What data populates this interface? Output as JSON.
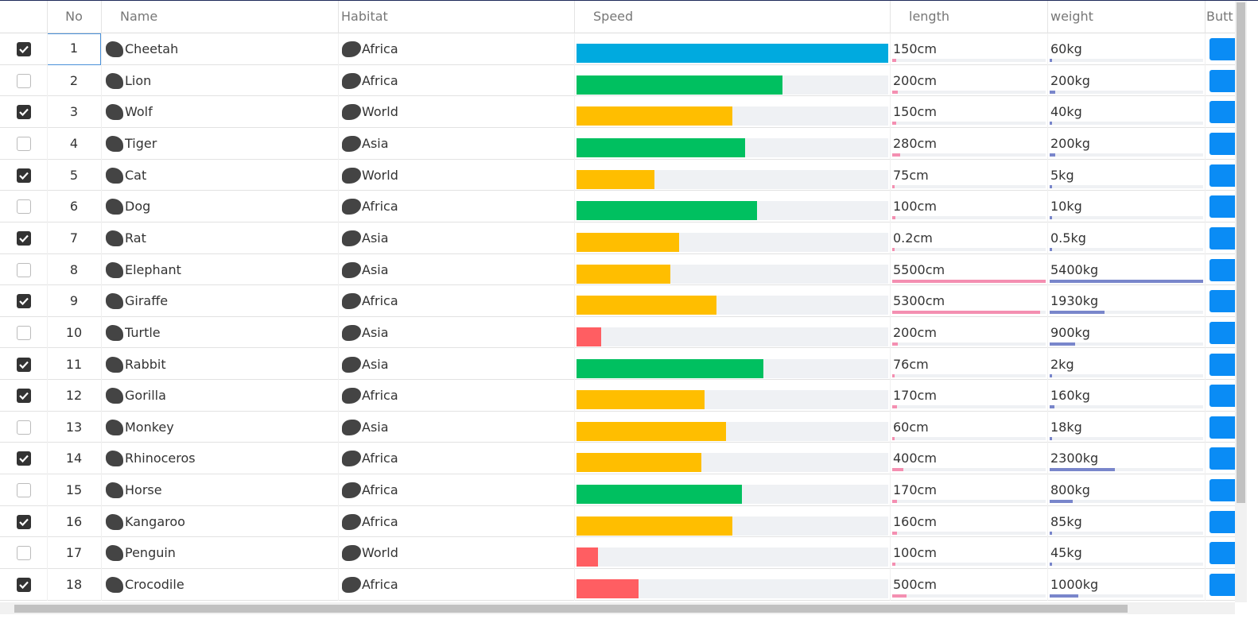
{
  "header": {
    "columns": [
      "No",
      "Name",
      "Habitat",
      "Speed",
      "length",
      "weight",
      "Butt"
    ]
  },
  "rows": [
    {
      "checked": true,
      "no": 1,
      "name": "Cheetah",
      "habitat": "Africa",
      "speed": 100,
      "speed_color": "#00aadf",
      "length": {
        "value": 150,
        "label": "150cm"
      },
      "weight": {
        "value": 60,
        "label": "60kg"
      }
    },
    {
      "checked": false,
      "no": 2,
      "name": "Lion",
      "habitat": "Africa",
      "speed": 66,
      "speed_color": "#00c060",
      "length": {
        "value": 200,
        "label": "200cm"
      },
      "weight": {
        "value": 200,
        "label": "200kg"
      }
    },
    {
      "checked": true,
      "no": 3,
      "name": "Wolf",
      "habitat": "World",
      "speed": 50,
      "speed_color": "#ffbe00",
      "length": {
        "value": 150,
        "label": "150cm"
      },
      "weight": {
        "value": 40,
        "label": "40kg"
      }
    },
    {
      "checked": false,
      "no": 4,
      "name": "Tiger",
      "habitat": "Asia",
      "speed": 54,
      "speed_color": "#00c060",
      "length": {
        "value": 280,
        "label": "280cm"
      },
      "weight": {
        "value": 200,
        "label": "200kg"
      }
    },
    {
      "checked": true,
      "no": 5,
      "name": "Cat",
      "habitat": "World",
      "speed": 25,
      "speed_color": "#ffbe00",
      "length": {
        "value": 75,
        "label": "75cm"
      },
      "weight": {
        "value": 5,
        "label": "5kg"
      }
    },
    {
      "checked": false,
      "no": 6,
      "name": "Dog",
      "habitat": "Africa",
      "speed": 58,
      "speed_color": "#00c060",
      "length": {
        "value": 100,
        "label": "100cm"
      },
      "weight": {
        "value": 10,
        "label": "10kg"
      }
    },
    {
      "checked": true,
      "no": 7,
      "name": "Rat",
      "habitat": "Asia",
      "speed": 33,
      "speed_color": "#ffbe00",
      "length": {
        "value": 0.2,
        "label": "0.2cm"
      },
      "weight": {
        "value": 0.5,
        "label": "0.5kg"
      }
    },
    {
      "checked": false,
      "no": 8,
      "name": "Elephant",
      "habitat": "Asia",
      "speed": 30,
      "speed_color": "#ffbe00",
      "length": {
        "value": 5500,
        "label": "5500cm"
      },
      "weight": {
        "value": 5400,
        "label": "5400kg"
      }
    },
    {
      "checked": true,
      "no": 9,
      "name": "Giraffe",
      "habitat": "Africa",
      "speed": 45,
      "speed_color": "#ffbe00",
      "length": {
        "value": 5300,
        "label": "5300cm"
      },
      "weight": {
        "value": 1930,
        "label": "1930kg"
      }
    },
    {
      "checked": false,
      "no": 10,
      "name": "Turtle",
      "habitat": "Asia",
      "speed": 8,
      "speed_color": "#ff5e62",
      "length": {
        "value": 200,
        "label": "200cm"
      },
      "weight": {
        "value": 900,
        "label": "900kg"
      }
    },
    {
      "checked": true,
      "no": 11,
      "name": "Rabbit",
      "habitat": "Asia",
      "speed": 60,
      "speed_color": "#00c060",
      "length": {
        "value": 76,
        "label": "76cm"
      },
      "weight": {
        "value": 2,
        "label": "2kg"
      }
    },
    {
      "checked": true,
      "no": 12,
      "name": "Gorilla",
      "habitat": "Africa",
      "speed": 41,
      "speed_color": "#ffbe00",
      "length": {
        "value": 170,
        "label": "170cm"
      },
      "weight": {
        "value": 160,
        "label": "160kg"
      }
    },
    {
      "checked": false,
      "no": 13,
      "name": "Monkey",
      "habitat": "Asia",
      "speed": 48,
      "speed_color": "#ffbe00",
      "length": {
        "value": 60,
        "label": "60cm"
      },
      "weight": {
        "value": 18,
        "label": "18kg"
      }
    },
    {
      "checked": true,
      "no": 14,
      "name": "Rhinoceros",
      "habitat": "Africa",
      "speed": 40,
      "speed_color": "#ffbe00",
      "length": {
        "value": 400,
        "label": "400cm"
      },
      "weight": {
        "value": 2300,
        "label": "2300kg"
      }
    },
    {
      "checked": false,
      "no": 15,
      "name": "Horse",
      "habitat": "Africa",
      "speed": 53,
      "speed_color": "#00c060",
      "length": {
        "value": 170,
        "label": "170cm"
      },
      "weight": {
        "value": 800,
        "label": "800kg"
      }
    },
    {
      "checked": true,
      "no": 16,
      "name": "Kangaroo",
      "habitat": "Africa",
      "speed": 50,
      "speed_color": "#ffbe00",
      "length": {
        "value": 160,
        "label": "160cm"
      },
      "weight": {
        "value": 85,
        "label": "85kg"
      }
    },
    {
      "checked": false,
      "no": 17,
      "name": "Penguin",
      "habitat": "World",
      "speed": 7,
      "speed_color": "#ff5e62",
      "length": {
        "value": 100,
        "label": "100cm"
      },
      "weight": {
        "value": 45,
        "label": "45kg"
      }
    },
    {
      "checked": true,
      "no": 18,
      "name": "Crocodile",
      "habitat": "Africa",
      "speed": 20,
      "speed_color": "#ff5e62",
      "length": {
        "value": 500,
        "label": "500cm"
      },
      "weight": {
        "value": 1000,
        "label": "1000kg"
      }
    }
  ]
}
